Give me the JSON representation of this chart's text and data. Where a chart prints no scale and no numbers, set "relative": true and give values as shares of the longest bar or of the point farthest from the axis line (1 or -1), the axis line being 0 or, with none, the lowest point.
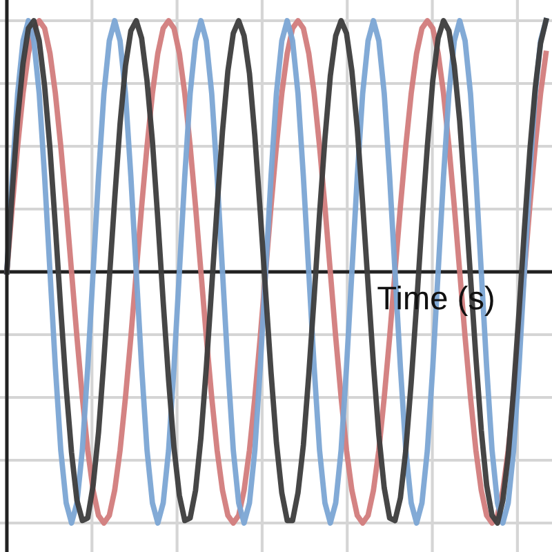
{
  "chart_data": {
    "type": "line",
    "relative": true,
    "xlabel": "Time (s)",
    "grid": true,
    "legend": false,
    "marker": "none",
    "line_style": "solid",
    "tick_labels": false,
    "ref_lines": [
      {
        "axis": "y",
        "value": 0,
        "color": "#222222"
      }
    ],
    "categories": [
      null,
      null,
      null,
      null,
      null,
      null,
      null,
      null,
      null,
      null,
      null,
      null,
      null,
      null,
      null,
      null,
      null,
      null,
      null,
      null,
      null,
      null,
      null,
      null,
      null,
      null,
      null,
      null,
      null,
      null,
      null,
      null,
      null,
      null,
      null,
      null,
      null,
      null,
      null,
      null,
      null,
      null,
      null,
      null,
      null,
      null,
      null,
      null,
      null,
      null,
      null,
      null,
      null,
      null,
      null,
      null,
      null,
      null,
      null,
      null,
      null,
      null,
      null,
      null,
      null,
      null,
      null,
      null,
      null,
      null,
      null,
      null,
      null,
      null,
      null,
      null,
      null,
      null,
      null,
      null,
      null,
      null,
      null,
      null,
      null,
      null,
      null,
      null,
      null,
      null,
      null,
      null,
      null,
      null,
      null,
      null,
      null,
      null,
      null,
      null,
      null
    ],
    "series": [
      {
        "color": "#d27c7c",
        "values": [
          0,
          0.26,
          0.5,
          0.71,
          0.87,
          0.97,
          1,
          0.97,
          0.87,
          0.71,
          0.5,
          0.26,
          0,
          -0.26,
          -0.5,
          -0.71,
          -0.87,
          -0.97,
          -1,
          -0.97,
          -0.87,
          -0.71,
          -0.5,
          -0.26,
          0,
          0.26,
          0.5,
          0.71,
          0.87,
          0.97,
          1,
          0.97,
          0.87,
          0.71,
          0.5,
          0.26,
          0,
          -0.26,
          -0.5,
          -0.71,
          -0.87,
          -0.97,
          -1,
          -0.97,
          -0.87,
          -0.71,
          -0.5,
          -0.26,
          0,
          0.26,
          0.5,
          0.71,
          0.87,
          0.97,
          1,
          0.97,
          0.87,
          0.71,
          0.5,
          0.26,
          0,
          -0.26,
          -0.5,
          -0.71,
          -0.87,
          -0.97,
          -1,
          -0.97,
          -0.87,
          -0.71,
          -0.5,
          -0.26,
          0,
          0.26,
          0.5,
          0.71,
          0.87,
          0.97,
          1,
          0.97,
          0.87,
          0.71,
          0.5,
          0.26,
          0,
          -0.26,
          -0.5,
          -0.71,
          -0.87,
          -0.97,
          -1,
          -0.97,
          -0.87,
          -0.71,
          -0.5,
          -0.26,
          0,
          0.26,
          0.5,
          0.71,
          0.87
        ]
      },
      {
        "color": "#7ba5d4",
        "values": [
          0,
          0.38,
          0.71,
          0.92,
          1,
          0.92,
          0.71,
          0.38,
          0,
          -0.38,
          -0.71,
          -0.92,
          -1,
          -0.92,
          -0.71,
          -0.38,
          0,
          0.38,
          0.71,
          0.92,
          1,
          0.92,
          0.71,
          0.38,
          0,
          -0.38,
          -0.71,
          -0.92,
          -1,
          -0.92,
          -0.71,
          -0.38,
          0,
          0.38,
          0.71,
          0.92,
          1,
          0.92,
          0.71,
          0.38,
          0,
          -0.38,
          -0.71,
          -0.92,
          -1,
          -0.92,
          -0.71,
          -0.38,
          0,
          0.38,
          0.71,
          0.92,
          1,
          0.92,
          0.71,
          0.38,
          0,
          -0.38,
          -0.71,
          -0.92,
          -1,
          -0.92,
          -0.71,
          -0.38,
          0,
          0.38,
          0.71,
          0.92,
          1,
          0.92,
          0.71,
          0.38,
          0,
          -0.38,
          -0.71,
          -0.92,
          -1,
          -0.92,
          -0.71,
          -0.38,
          0,
          0.38,
          0.71,
          0.92,
          1,
          0.92,
          0.71,
          0.38,
          0,
          -0.38,
          -0.71,
          -0.92,
          -1,
          -0.92,
          -0.71,
          -0.38,
          0,
          0.38,
          0.71,
          0.92,
          1
        ]
      },
      {
        "color": "#3c3c3c",
        "values": [
          0,
          0.32,
          0.61,
          0.83,
          0.97,
          1,
          0.92,
          0.74,
          0.49,
          0.18,
          -0.15,
          -0.46,
          -0.72,
          -0.91,
          -0.99,
          -0.98,
          -0.85,
          -0.64,
          -0.35,
          -0.03,
          0.29,
          0.59,
          0.82,
          0.96,
          1,
          0.93,
          0.76,
          0.52,
          0.21,
          -0.12,
          -0.43,
          -0.7,
          -0.89,
          -0.99,
          -0.98,
          -0.87,
          -0.66,
          -0.38,
          -0.06,
          0.26,
          0.56,
          0.8,
          0.95,
          1,
          0.94,
          0.79,
          0.54,
          0.24,
          -0.08,
          -0.4,
          -0.68,
          -0.88,
          -0.99,
          -0.99,
          -0.88,
          -0.69,
          -0.41,
          -0.1,
          0.23,
          0.53,
          0.78,
          0.94,
          1,
          0.95,
          0.8,
          0.57,
          0.27,
          -0.05,
          -0.37,
          -0.65,
          -0.86,
          -0.98,
          -0.99,
          -0.9,
          -0.71,
          -0.44,
          -0.13,
          0.2,
          0.5,
          0.76,
          0.93,
          1,
          0.96,
          0.82,
          0.6,
          0.3,
          -0.02,
          -0.34,
          -0.63,
          -0.85,
          -0.97,
          -1,
          -0.91,
          -0.73,
          -0.47,
          -0.16,
          0.17,
          0.48,
          0.73,
          0.91,
          1
        ]
      }
    ]
  }
}
